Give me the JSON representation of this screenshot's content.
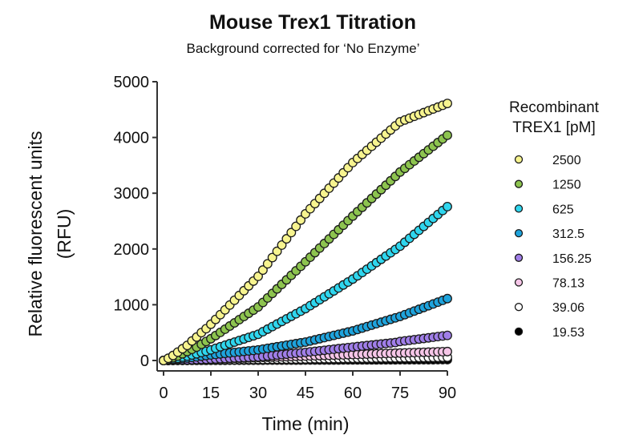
{
  "chart_data": {
    "type": "scatter",
    "title": "Mouse Trex1 Titration",
    "subtitle": "Background corrected for ‘No Enzyme’",
    "xlabel": "Time (min)",
    "ylabel": [
      "Relative fluorescent units",
      "(RFU)"
    ],
    "xlim": [
      0,
      90
    ],
    "ylim": [
      0,
      5000
    ],
    "xticks": [
      0,
      15,
      30,
      45,
      60,
      75,
      90
    ],
    "yticks": [
      0,
      1000,
      2000,
      3000,
      4000,
      5000
    ],
    "grid": false,
    "legend": {
      "title": [
        "Recombinant",
        "TREX1 [pM]"
      ],
      "placement": "right"
    },
    "x_step_min": 1.5,
    "series": [
      {
        "name": "2500",
        "color": "#f7f48f",
        "values": [
          0,
          40,
          90,
          150,
          210,
          270,
          350,
          420,
          500,
          570,
          650,
          736,
          822,
          908,
          994,
          1080,
          1166,
          1252,
          1338,
          1424,
          1510,
          1622,
          1734,
          1846,
          1958,
          2070,
          2182,
          2294,
          2406,
          2518,
          2630,
          2722,
          2814,
          2906,
          2998,
          3090,
          3182,
          3274,
          3366,
          3458,
          3550,
          3623,
          3696,
          3769,
          3842,
          3915,
          3988,
          4061,
          4134,
          4207,
          4280,
          4313,
          4346,
          4379,
          4412,
          4445,
          4478,
          4511,
          4544,
          4577,
          4610
        ]
      },
      {
        "name": "1250",
        "color": "#8dc44f",
        "values": [
          0,
          20,
          50,
          80,
          120,
          160,
          200,
          240,
          290,
          340,
          390,
          447,
          504,
          561,
          618,
          675,
          732,
          789,
          846,
          903,
          960,
          1041,
          1122,
          1203,
          1284,
          1365,
          1446,
          1527,
          1608,
          1689,
          1770,
          1852,
          1934,
          2016,
          2098,
          2180,
          2262,
          2344,
          2426,
          2508,
          2590,
          2669,
          2748,
          2827,
          2906,
          2985,
          3064,
          3143,
          3222,
          3301,
          3380,
          3446,
          3512,
          3578,
          3644,
          3710,
          3776,
          3842,
          3908,
          3974,
          4040
        ]
      },
      {
        "name": "625",
        "color": "#2fd6ee",
        "values": [
          0,
          10,
          25,
          40,
          60,
          80,
          100,
          120,
          145,
          165,
          190,
          218,
          246,
          274,
          302,
          330,
          358,
          386,
          414,
          442,
          470,
          516,
          562,
          608,
          654,
          700,
          746,
          792,
          838,
          884,
          930,
          983,
          1036,
          1089,
          1142,
          1195,
          1248,
          1301,
          1354,
          1407,
          1460,
          1519,
          1578,
          1637,
          1696,
          1755,
          1814,
          1873,
          1932,
          1991,
          2050,
          2121,
          2192,
          2263,
          2334,
          2405,
          2476,
          2547,
          2618,
          2689,
          2760
        ]
      },
      {
        "name": "312.5",
        "color": "#1ea3dc",
        "values": [
          0,
          8,
          16,
          25,
          35,
          45,
          55,
          65,
          77,
          88,
          100,
          109,
          118,
          127,
          136,
          145,
          154,
          163,
          172,
          181,
          190,
          204,
          218,
          232,
          246,
          260,
          274,
          288,
          302,
          316,
          330,
          350,
          370,
          390,
          410,
          430,
          450,
          470,
          490,
          510,
          530,
          556,
          582,
          608,
          634,
          660,
          686,
          712,
          738,
          764,
          790,
          822,
          854,
          886,
          918,
          950,
          982,
          1014,
          1046,
          1078,
          1110
        ]
      },
      {
        "name": "156.25",
        "color": "#a07ee8",
        "values": [
          0,
          2,
          5,
          7,
          10,
          12,
          15,
          17,
          20,
          22,
          25,
          29,
          33,
          37,
          41,
          45,
          49,
          53,
          57,
          61,
          65,
          73,
          81,
          89,
          97,
          105,
          113,
          121,
          129,
          137,
          145,
          155,
          164,
          174,
          183,
          193,
          202,
          212,
          221,
          231,
          240,
          250,
          259,
          268,
          277,
          286,
          295,
          304,
          313,
          322,
          340,
          351,
          362,
          373,
          384,
          395,
          406,
          417,
          428,
          439,
          450
        ]
      },
      {
        "name": "78.13",
        "color": "#f6c6e8",
        "values": [
          0,
          3,
          5,
          8,
          11,
          13,
          16,
          19,
          21,
          24,
          27,
          29,
          32,
          35,
          37,
          40,
          43,
          45,
          48,
          51,
          53,
          56,
          59,
          61,
          64,
          67,
          69,
          72,
          75,
          77,
          80,
          83,
          85,
          88,
          91,
          93,
          96,
          99,
          101,
          104,
          107,
          109,
          112,
          115,
          117,
          120,
          123,
          125,
          128,
          131,
          133,
          136,
          139,
          141,
          144,
          147,
          149,
          152,
          155,
          157,
          160
        ]
      },
      {
        "name": "39.06",
        "color": "#ffffff",
        "values": [
          0,
          1,
          2,
          3,
          4,
          5,
          6,
          7,
          8,
          9,
          10,
          11,
          12,
          13,
          14,
          15,
          16,
          17,
          18,
          19,
          20,
          21,
          22,
          23,
          24,
          25,
          26,
          27,
          28,
          29,
          30,
          31,
          32,
          33,
          34,
          35,
          36,
          37,
          38,
          39,
          40,
          41,
          42,
          43,
          44,
          45,
          46,
          47,
          48,
          49,
          50,
          51,
          52,
          53,
          54,
          55,
          56,
          57,
          58,
          59,
          60
        ]
      },
      {
        "name": "19.53",
        "color": "#000000",
        "values": [
          0,
          0,
          1,
          1,
          1,
          1,
          2,
          2,
          2,
          2,
          3,
          3,
          3,
          3,
          4,
          4,
          4,
          4,
          5,
          5,
          5,
          5,
          6,
          6,
          6,
          6,
          7,
          7,
          7,
          7,
          8,
          8,
          8,
          8,
          9,
          9,
          9,
          9,
          10,
          10,
          10,
          10,
          11,
          11,
          11,
          11,
          12,
          12,
          12,
          12,
          13,
          13,
          13,
          13,
          14,
          14,
          14,
          14,
          15,
          15,
          15
        ]
      }
    ]
  }
}
